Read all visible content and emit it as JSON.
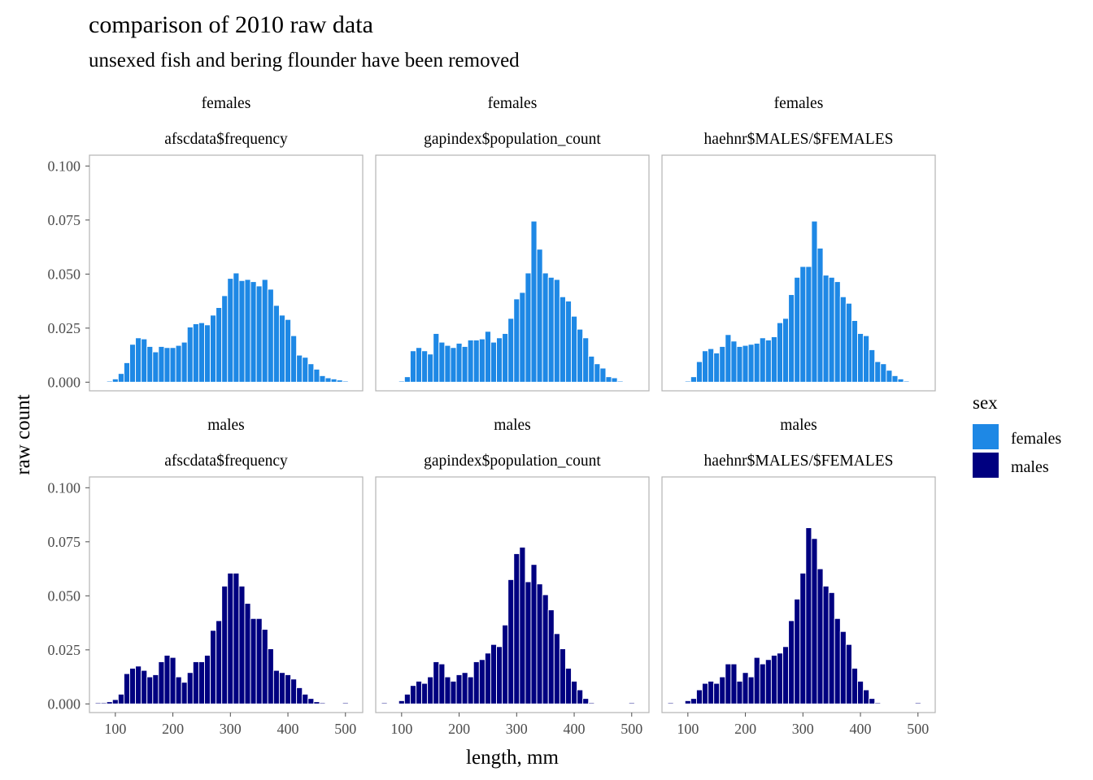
{
  "chart_data": {
    "type": "bar",
    "title": "comparison of 2010 raw data",
    "subtitle": "unsexed fish and bering flounder have been removed",
    "xlabel": "length, mm",
    "ylabel": "raw count",
    "xlim": [
      55,
      530
    ],
    "ylim": [
      -0.004,
      0.105
    ],
    "x_ticks": [
      100,
      200,
      300,
      400,
      500
    ],
    "x_tick_labels": [
      "100",
      "200",
      "300",
      "400",
      "500"
    ],
    "y_ticks": [
      0,
      0.025,
      0.05,
      0.075,
      0.1
    ],
    "y_tick_labels": [
      "0.000",
      "0.025",
      "0.050",
      "0.075",
      "0.100"
    ],
    "bin_width": 10,
    "grid": false,
    "legend": {
      "title": "sex",
      "position": "right",
      "items": [
        {
          "label": "females",
          "color": "#1E88E5"
        },
        {
          "label": "males",
          "color": "#000080"
        }
      ]
    },
    "facet_rows": [
      "females",
      "males"
    ],
    "facet_cols": [
      "afscdata$frequency",
      "gapindex$population_count",
      "haehnr$MALES/$FEMALES"
    ],
    "panels": [
      {
        "row": "females",
        "col": "afscdata$frequency",
        "color": "#1E88E5",
        "x": [
          80,
          90,
          100,
          110,
          120,
          130,
          140,
          150,
          160,
          170,
          180,
          190,
          200,
          210,
          220,
          230,
          240,
          250,
          260,
          270,
          280,
          290,
          300,
          310,
          320,
          330,
          340,
          350,
          360,
          370,
          380,
          390,
          400,
          410,
          420,
          430,
          440,
          450,
          460,
          470,
          480,
          490,
          500,
          510
        ],
        "values": [
          0.0002,
          0.0005,
          0.0015,
          0.004,
          0.009,
          0.0175,
          0.0205,
          0.02,
          0.0165,
          0.014,
          0.0165,
          0.016,
          0.016,
          0.017,
          0.0185,
          0.0255,
          0.027,
          0.0275,
          0.0265,
          0.031,
          0.0345,
          0.04,
          0.048,
          0.0505,
          0.047,
          0.0475,
          0.0465,
          0.0445,
          0.0475,
          0.043,
          0.0355,
          0.031,
          0.029,
          0.0215,
          0.0125,
          0.0115,
          0.0085,
          0.006,
          0.003,
          0.002,
          0.0015,
          0.001,
          0.0005,
          0.0002
        ]
      },
      {
        "row": "females",
        "col": "gapindex$population_count",
        "color": "#1E88E5",
        "x": [
          70,
          100,
          110,
          120,
          130,
          140,
          150,
          160,
          170,
          180,
          190,
          200,
          210,
          220,
          230,
          240,
          250,
          260,
          270,
          280,
          290,
          300,
          310,
          320,
          330,
          340,
          350,
          360,
          370,
          380,
          390,
          400,
          410,
          420,
          430,
          440,
          450,
          460,
          470,
          480
        ],
        "values": [
          0.0002,
          0.0005,
          0.0025,
          0.0145,
          0.016,
          0.0145,
          0.013,
          0.0225,
          0.0185,
          0.017,
          0.016,
          0.018,
          0.0165,
          0.0195,
          0.0195,
          0.02,
          0.0235,
          0.0185,
          0.0205,
          0.0225,
          0.0295,
          0.0385,
          0.0415,
          0.0505,
          0.0745,
          0.0615,
          0.0505,
          0.0485,
          0.0475,
          0.0395,
          0.0375,
          0.0305,
          0.0245,
          0.0205,
          0.012,
          0.0085,
          0.0065,
          0.0025,
          0.002,
          0.0005
        ]
      },
      {
        "row": "females",
        "col": "haehnr$MALES/$FEMALES",
        "color": "#1E88E5",
        "x": [
          70,
          100,
          110,
          120,
          130,
          140,
          150,
          160,
          170,
          180,
          190,
          200,
          210,
          220,
          230,
          240,
          250,
          260,
          270,
          280,
          290,
          300,
          310,
          320,
          330,
          340,
          350,
          360,
          370,
          380,
          390,
          400,
          410,
          420,
          430,
          440,
          450,
          460,
          470,
          480,
          490,
          500
        ],
        "values": [
          0.0002,
          0.0005,
          0.0025,
          0.0095,
          0.0145,
          0.0155,
          0.0135,
          0.0165,
          0.022,
          0.019,
          0.0165,
          0.017,
          0.0175,
          0.018,
          0.0205,
          0.0195,
          0.021,
          0.0275,
          0.0295,
          0.0405,
          0.0485,
          0.0535,
          0.0535,
          0.0745,
          0.062,
          0.0495,
          0.0485,
          0.0465,
          0.0395,
          0.0365,
          0.0285,
          0.0225,
          0.0215,
          0.015,
          0.0095,
          0.0085,
          0.0055,
          0.003,
          0.0015,
          0.0005,
          0.0003,
          0.0002
        ]
      },
      {
        "row": "males",
        "col": "afscdata$frequency",
        "color": "#000080",
        "x": [
          70,
          80,
          90,
          100,
          110,
          120,
          130,
          140,
          150,
          160,
          170,
          180,
          190,
          200,
          210,
          220,
          230,
          240,
          250,
          260,
          270,
          280,
          290,
          300,
          310,
          320,
          330,
          340,
          350,
          360,
          370,
          380,
          390,
          400,
          410,
          420,
          430,
          440,
          450,
          460,
          470,
          480,
          490,
          500
        ],
        "values": [
          0.0005,
          0.0005,
          0.001,
          0.002,
          0.0045,
          0.014,
          0.0165,
          0.0175,
          0.0155,
          0.0125,
          0.0135,
          0.0195,
          0.0225,
          0.0215,
          0.0125,
          0.01,
          0.0145,
          0.0195,
          0.0195,
          0.0225,
          0.034,
          0.0385,
          0.0545,
          0.0605,
          0.0605,
          0.0545,
          0.0465,
          0.0395,
          0.0395,
          0.0345,
          0.0255,
          0.0155,
          0.0145,
          0.0135,
          0.0115,
          0.0075,
          0.0045,
          0.0025,
          0.001,
          0.0005,
          0.0002,
          0.0002,
          0.0002,
          0.0005
        ]
      },
      {
        "row": "males",
        "col": "gapindex$population_count",
        "color": "#000080",
        "x": [
          70,
          100,
          110,
          120,
          130,
          140,
          150,
          160,
          170,
          180,
          190,
          200,
          210,
          220,
          230,
          240,
          250,
          260,
          270,
          280,
          290,
          300,
          310,
          320,
          330,
          340,
          350,
          360,
          370,
          380,
          390,
          400,
          410,
          420,
          430,
          500
        ],
        "values": [
          0.0005,
          0.0015,
          0.0045,
          0.0085,
          0.0105,
          0.0095,
          0.0125,
          0.0195,
          0.0185,
          0.0125,
          0.0105,
          0.0135,
          0.0145,
          0.0125,
          0.0195,
          0.0205,
          0.0235,
          0.0275,
          0.0265,
          0.0365,
          0.0575,
          0.0695,
          0.0725,
          0.0565,
          0.0645,
          0.0555,
          0.0505,
          0.0435,
          0.0325,
          0.0255,
          0.0165,
          0.0105,
          0.0065,
          0.0025,
          0.0005,
          0.0005
        ]
      },
      {
        "row": "males",
        "col": "haehnr$MALES/$FEMALES",
        "color": "#000080",
        "x": [
          70,
          100,
          110,
          120,
          130,
          140,
          150,
          160,
          170,
          180,
          190,
          200,
          210,
          220,
          230,
          240,
          250,
          260,
          270,
          280,
          290,
          300,
          310,
          320,
          330,
          340,
          350,
          360,
          370,
          380,
          390,
          400,
          410,
          420,
          430,
          500
        ],
        "values": [
          0.0005,
          0.0015,
          0.0025,
          0.0065,
          0.0095,
          0.0105,
          0.0095,
          0.0125,
          0.0185,
          0.0185,
          0.0105,
          0.0145,
          0.0125,
          0.0215,
          0.0185,
          0.0205,
          0.0225,
          0.0235,
          0.0265,
          0.0385,
          0.0485,
          0.0605,
          0.0815,
          0.0765,
          0.0625,
          0.0545,
          0.0515,
          0.0395,
          0.0335,
          0.0275,
          0.0165,
          0.0105,
          0.0065,
          0.0025,
          0.0005,
          0.0005
        ]
      }
    ]
  }
}
